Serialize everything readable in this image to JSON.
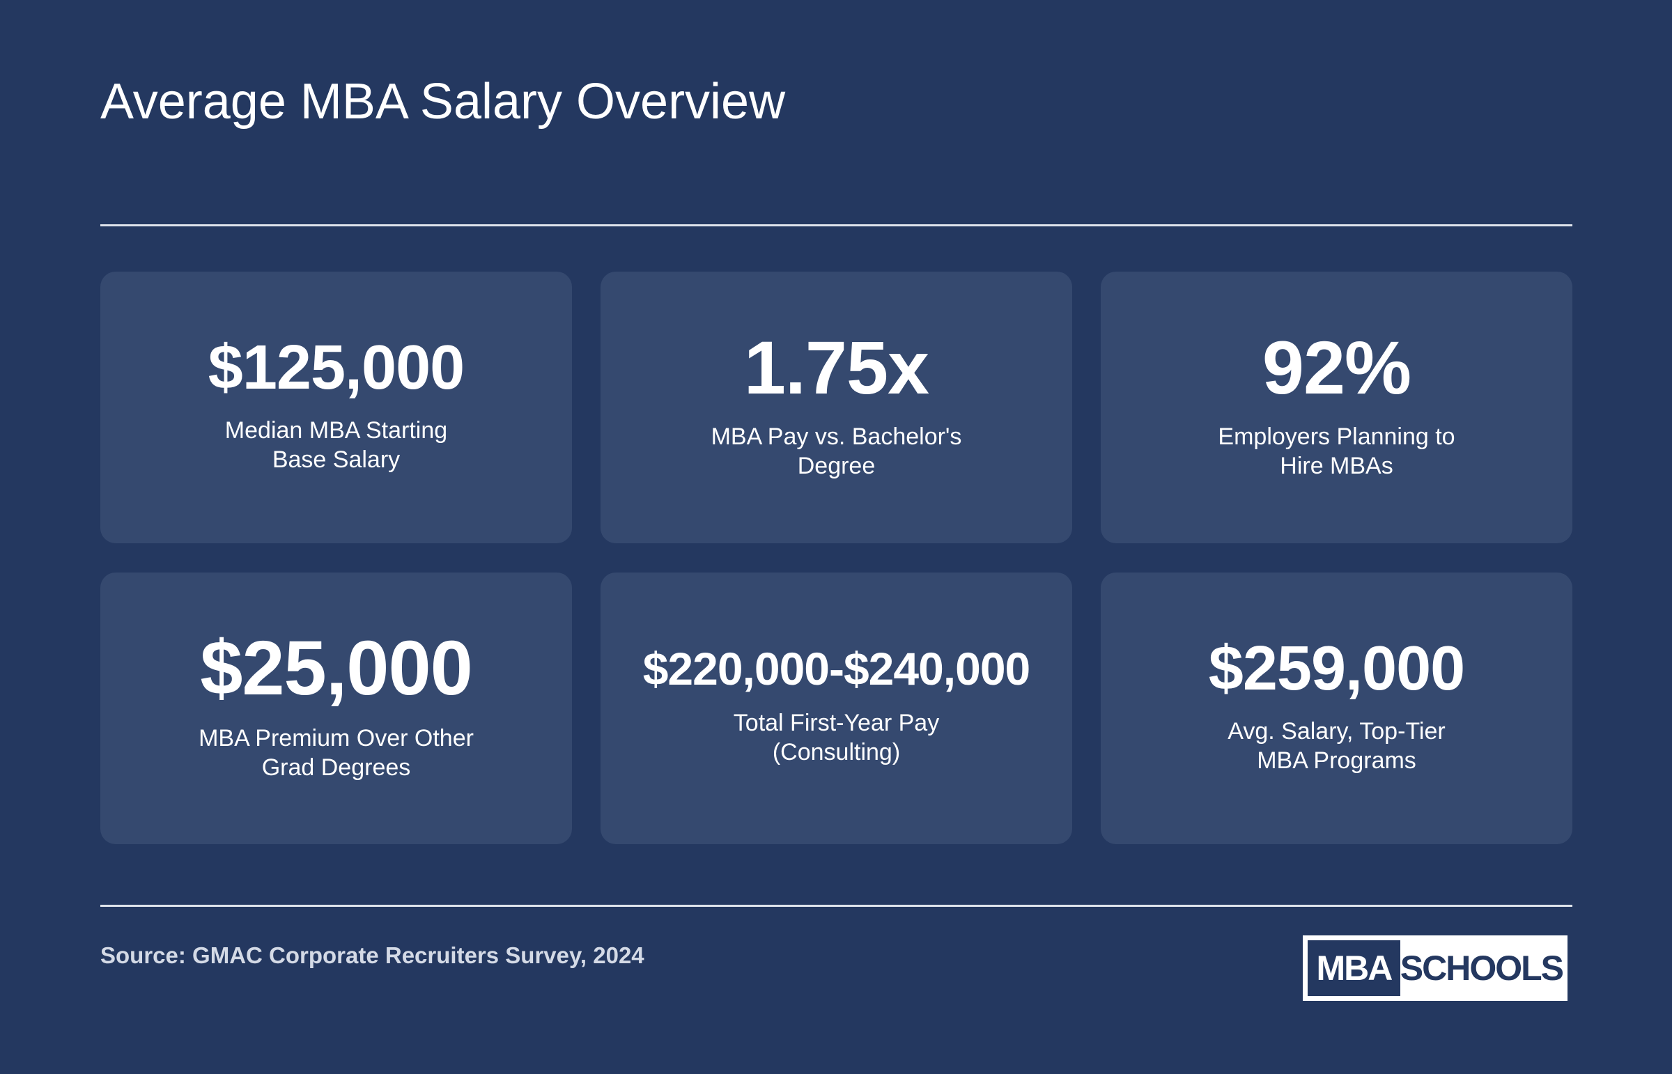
{
  "title": "Average MBA Salary Overview",
  "stats": [
    {
      "value": "$125,000",
      "label_line1": "Median MBA Starting",
      "label_line2": "Base Salary"
    },
    {
      "value": "1.75x",
      "label_line1": "MBA Pay vs. Bachelor's",
      "label_line2": "Degree"
    },
    {
      "value": "92%",
      "label_line1": "Employers Planning to",
      "label_line2": "Hire MBAs"
    },
    {
      "value": "$25,000",
      "label_line1": "MBA Premium Over Other",
      "label_line2": "Grad Degrees"
    },
    {
      "value": "$220,000-$240,000",
      "label_line1": "Total First-Year Pay",
      "label_line2": "(Consulting)"
    },
    {
      "value": "$259,000",
      "label_line1": "Avg. Salary, Top-Tier",
      "label_line2": "MBA Programs"
    }
  ],
  "source": "Source: GMAC Corporate Recruiters Survey, 2024",
  "logo": {
    "left": "MBA",
    "right": "SCHOOLS"
  },
  "colors": {
    "background": "#243860",
    "card": "#35496f",
    "text": "#ffffff",
    "source_text": "#d4dae6"
  }
}
